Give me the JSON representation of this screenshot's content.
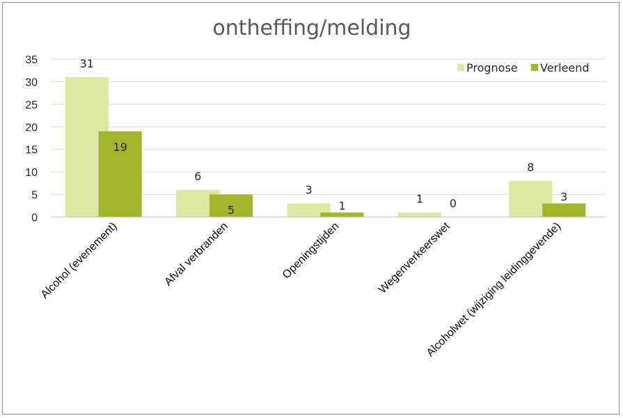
{
  "chart_data": {
    "type": "bar",
    "title": "ontheffing/melding",
    "categories": [
      "Alcohol (evenement)",
      "Afval verbranden",
      "Openingstijden",
      "Wegenverkeerswet",
      "Alcoholwet (wijziging leidinggevende)"
    ],
    "series": [
      {
        "name": "Prognose",
        "values": [
          31,
          6,
          3,
          1,
          8
        ],
        "color": "#dde9a3"
      },
      {
        "name": "Verleend",
        "values": [
          19,
          5,
          1,
          0,
          3
        ],
        "color": "#a3b52a"
      }
    ],
    "ylim": [
      0,
      35
    ],
    "yticks": [
      "0",
      "5",
      "10",
      "15",
      "20",
      "25",
      "30",
      "35"
    ],
    "grid": true,
    "legend": "top-right",
    "xlabel": "",
    "ylabel": ""
  }
}
